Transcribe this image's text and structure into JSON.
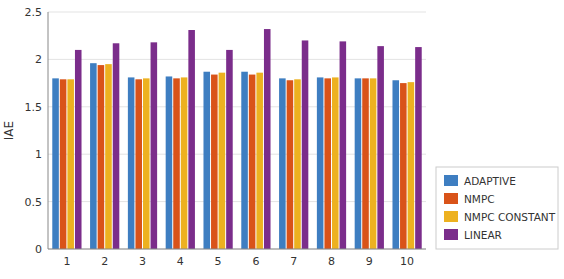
{
  "chart_data": {
    "type": "bar",
    "categories": [
      1,
      2,
      3,
      4,
      5,
      6,
      7,
      8,
      9,
      10
    ],
    "series": [
      {
        "name": "ADAPTIVE",
        "color": "#3e7ec1",
        "values": [
          1.8,
          1.96,
          1.81,
          1.82,
          1.87,
          1.87,
          1.8,
          1.81,
          1.8,
          1.78
        ]
      },
      {
        "name": "NMPC",
        "color": "#d95319",
        "values": [
          1.79,
          1.94,
          1.79,
          1.8,
          1.84,
          1.84,
          1.78,
          1.8,
          1.8,
          1.75
        ]
      },
      {
        "name": "NMPC CONSTANT",
        "color": "#edb120",
        "values": [
          1.79,
          1.95,
          1.8,
          1.81,
          1.86,
          1.86,
          1.79,
          1.81,
          1.8,
          1.76
        ]
      },
      {
        "name": "LINEAR",
        "color": "#7b2d8b",
        "values": [
          2.1,
          2.17,
          2.18,
          2.31,
          2.1,
          2.32,
          2.2,
          2.19,
          2.14,
          2.13
        ]
      }
    ],
    "ylabel": "IAE",
    "ylim": [
      0,
      2.5
    ],
    "yticks": [
      0,
      0.5,
      1,
      1.5,
      2,
      2.5
    ],
    "grid": true,
    "legend": "lower right"
  }
}
